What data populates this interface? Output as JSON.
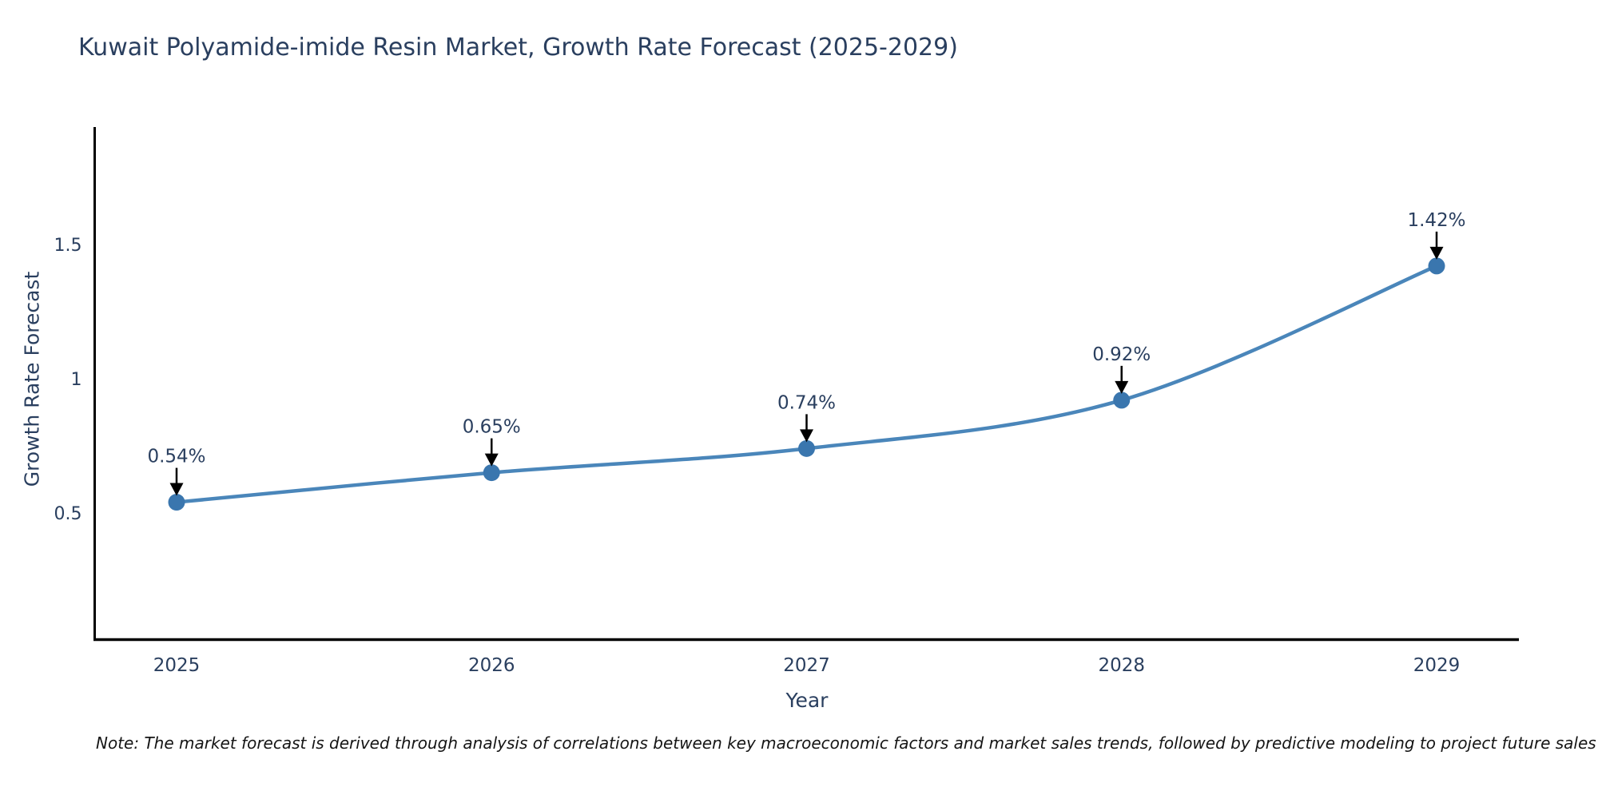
{
  "title": "Kuwait Polyamide-imide Resin Market, Growth Rate Forecast (2025-2029)",
  "note": "Note: The market forecast is derived through analysis of correlations between key macroeconomic factors and market sales trends, followed by predictive modeling to project future sales",
  "chart_data": {
    "type": "line",
    "title": "Kuwait Polyamide-imide Resin Market, Growth Rate Forecast (2025-2029)",
    "xlabel": "Year",
    "ylabel": "Growth Rate Forecast",
    "categories": [
      "2025",
      "2026",
      "2027",
      "2028",
      "2029"
    ],
    "values": [
      0.54,
      0.65,
      0.74,
      0.92,
      1.42
    ],
    "point_labels": [
      "0.54%",
      "0.65%",
      "0.74%",
      "0.92%",
      "1.42%"
    ],
    "yticks": [
      "0.5",
      "1",
      "1.5"
    ],
    "ytick_values": [
      0.5,
      1.0,
      1.5
    ],
    "ylim": [
      0.03,
      1.94
    ],
    "grid": false,
    "legend": "none",
    "colors": {
      "line": "#4a86ba",
      "marker": "#3a76ae",
      "axis": "#000000",
      "tick_text": "#2a3f5f",
      "annotation_text": "#2a3f5f",
      "arrow": "#000000"
    }
  }
}
